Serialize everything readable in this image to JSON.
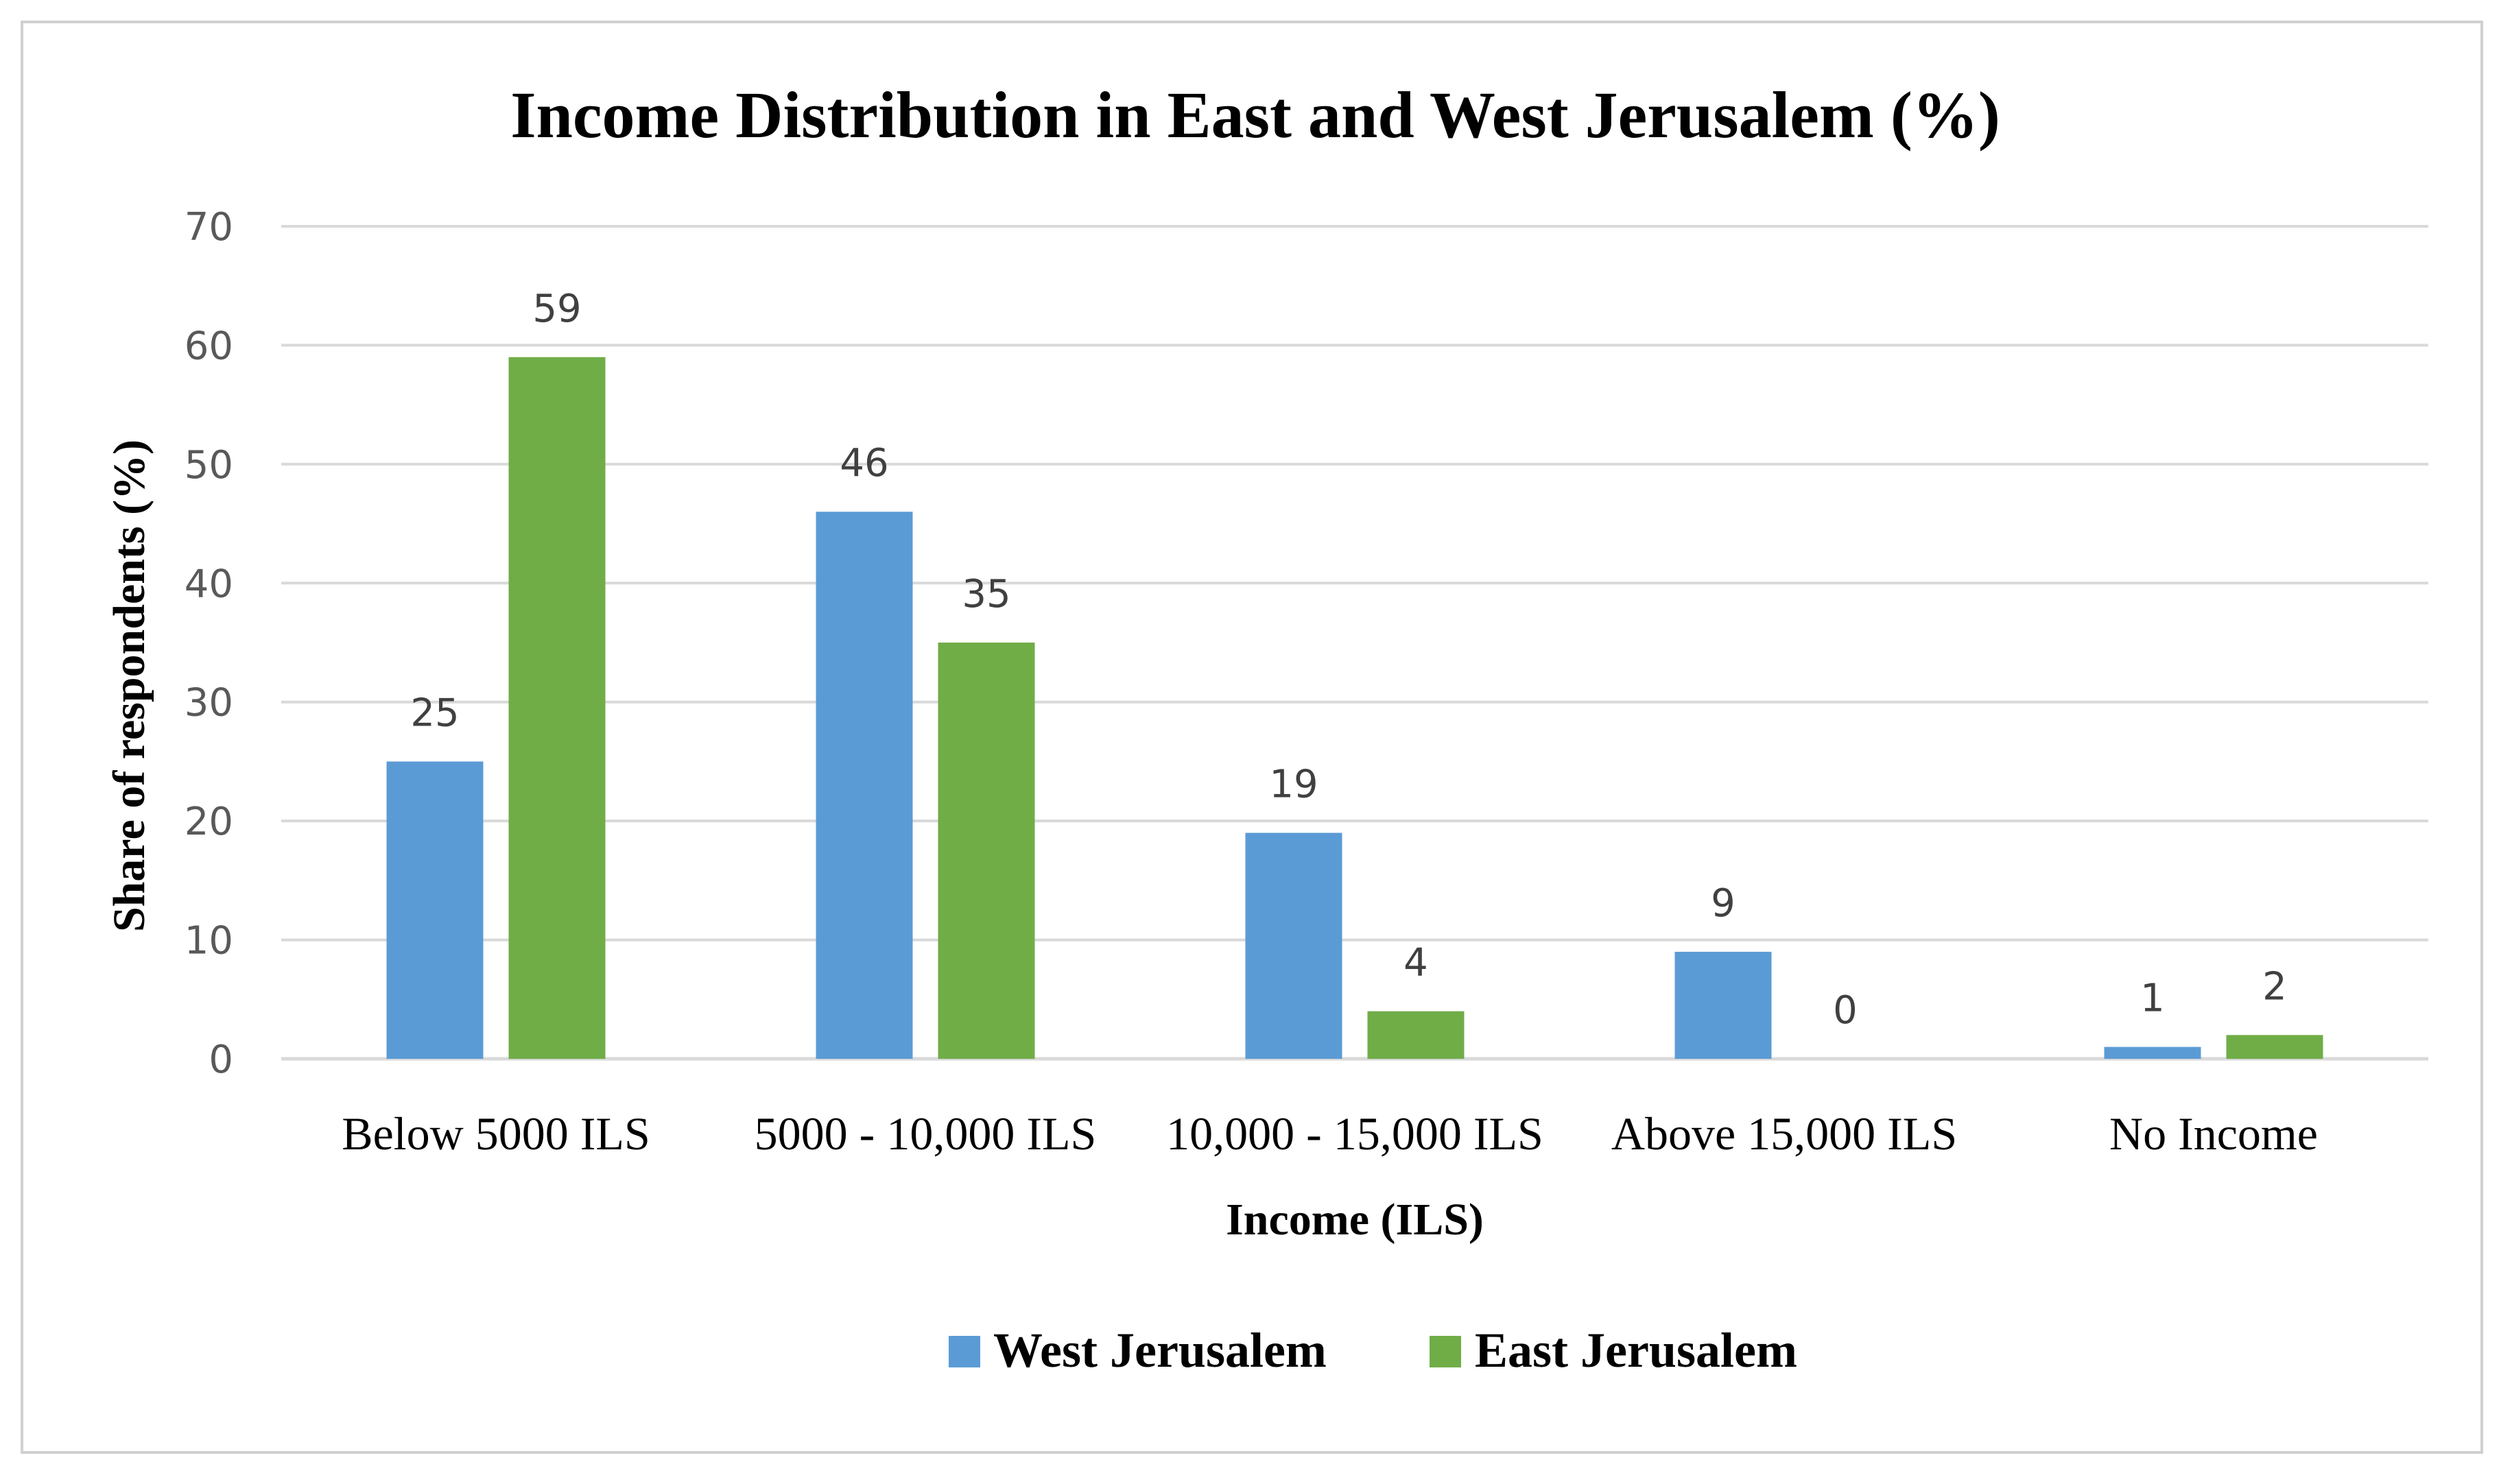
{
  "chart_data": {
    "type": "bar",
    "title": "Income Distribution in East and West Jerusalem (%)",
    "xlabel": "Income (ILS)",
    "ylabel": "Share of respondents (%)",
    "ylim": [
      0,
      70
    ],
    "yticks": [
      0,
      10,
      20,
      30,
      40,
      50,
      60,
      70
    ],
    "grid": true,
    "legend_position": "bottom",
    "categories": [
      "Below 5000 ILS",
      "5000 - 10,000 ILS",
      "10,000 - 15,000 ILS",
      "Above 15,000 ILS",
      "No Income"
    ],
    "series": [
      {
        "name": "West Jerusalem",
        "color": "#5b9bd5",
        "values": [
          25,
          46,
          19,
          9,
          1
        ]
      },
      {
        "name": "East Jerusalem",
        "color": "#70ad47",
        "values": [
          59,
          35,
          4,
          0,
          2
        ]
      }
    ]
  }
}
